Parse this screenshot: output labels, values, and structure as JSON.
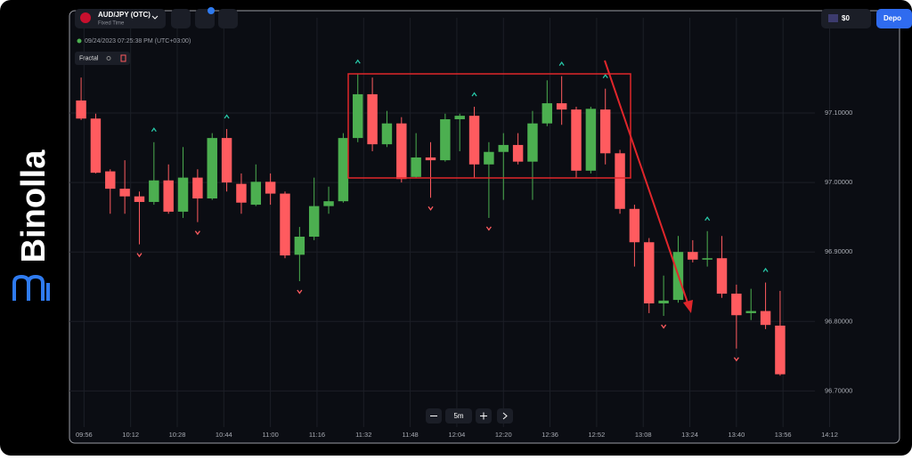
{
  "brand": "Binolla",
  "header": {
    "pair": "AUD/JPY (OTC)",
    "mode": "Fixed Time",
    "balance": "$0",
    "deposit": "Depo"
  },
  "timestamp": "09/24/2023 07:25:38 PM (UTC+03:00)",
  "indicator": "Fractal",
  "timeframe": "5m",
  "chart_data": {
    "type": "candlestick",
    "x": [
      595,
      600,
      605,
      610,
      615,
      620,
      625,
      630,
      635,
      640,
      645,
      650,
      655,
      660,
      665,
      670,
      675,
      680,
      685,
      690,
      695,
      700,
      705,
      710,
      715,
      720,
      725,
      730,
      735,
      740,
      745,
      750,
      755,
      760,
      765,
      770,
      775,
      780,
      785,
      790,
      795,
      800,
      805,
      810,
      815,
      820,
      825,
      830,
      835
    ],
    "open": [
      97.118,
      97.092,
      97.016,
      96.991,
      96.98,
      96.972,
      97.003,
      96.958,
      97.007,
      96.977,
      97.064,
      96.998,
      96.968,
      97.001,
      96.984,
      96.896,
      96.922,
      96.966,
      96.973,
      97.064,
      97.127,
      97.055,
      97.085,
      97.008,
      97.036,
      97.032,
      97.091,
      97.096,
      97.026,
      97.044,
      97.054,
      97.03,
      97.085,
      97.114,
      97.105,
      97.017,
      97.105,
      97.042,
      96.962,
      96.914,
      96.826,
      96.831,
      96.9,
      96.889,
      96.891,
      96.84,
      96.812,
      96.815,
      96.794
    ],
    "high": [
      97.151,
      97.099,
      97.019,
      97.032,
      96.987,
      97.058,
      97.026,
      97.051,
      97.019,
      97.071,
      97.077,
      97.013,
      97.026,
      97.013,
      96.987,
      96.936,
      97.007,
      96.994,
      97.071,
      97.156,
      97.151,
      97.103,
      97.094,
      97.071,
      97.058,
      97.099,
      97.099,
      97.109,
      97.058,
      97.071,
      97.071,
      97.103,
      97.147,
      97.153,
      97.109,
      97.109,
      97.135,
      97.047,
      96.968,
      96.92,
      96.866,
      96.923,
      96.917,
      96.93,
      96.923,
      96.853,
      96.847,
      96.856,
      96.844
    ],
    "low": [
      97.09,
      97.013,
      96.955,
      96.955,
      96.911,
      96.968,
      96.955,
      96.949,
      96.943,
      96.975,
      96.987,
      96.955,
      96.966,
      96.968,
      96.891,
      96.858,
      96.917,
      96.955,
      96.971,
      97.058,
      97.045,
      97.051,
      97.0,
      97.007,
      96.978,
      97.03,
      97.045,
      97.007,
      96.949,
      96.975,
      97.026,
      96.975,
      97.081,
      97.083,
      97.007,
      97.013,
      97.026,
      96.955,
      96.879,
      96.812,
      96.808,
      96.827,
      96.885,
      96.879,
      96.834,
      96.761,
      96.802,
      96.789,
      96.722
    ],
    "close": [
      97.092,
      97.014,
      96.991,
      96.98,
      96.972,
      97.003,
      96.958,
      97.007,
      96.977,
      97.064,
      97.0,
      96.971,
      97.001,
      96.984,
      96.895,
      96.922,
      96.966,
      96.973,
      97.064,
      97.127,
      97.055,
      97.085,
      97.005,
      97.036,
      97.032,
      97.091,
      97.096,
      97.026,
      97.044,
      97.054,
      97.03,
      97.085,
      97.114,
      97.105,
      97.017,
      97.106,
      97.042,
      96.962,
      96.914,
      96.826,
      96.83,
      96.9,
      96.889,
      96.891,
      96.84,
      96.809,
      96.815,
      96.795,
      96.724
    ],
    "up_color": "#4caf50",
    "down_color": "#ff5b5f",
    "fractal_up": [
      620,
      645,
      690,
      730,
      760,
      775,
      810,
      830
    ],
    "fractal_up_color": "#26c6a6",
    "fractal_down": [
      615,
      635,
      670,
      715,
      735,
      795,
      820
    ],
    "fractal_down_color": "#ff5b5f",
    "xlim": [
      591,
      876
    ],
    "xticks": [
      {
        "value": 596,
        "label": "09:56"
      },
      {
        "value": 612,
        "label": "10:12"
      },
      {
        "value": 628,
        "label": "10:28"
      },
      {
        "value": 644,
        "label": "10:44"
      },
      {
        "value": 660,
        "label": "11:00"
      },
      {
        "value": 676,
        "label": "11:16"
      },
      {
        "value": 692,
        "label": "11:32"
      },
      {
        "value": 708,
        "label": "11:48"
      },
      {
        "value": 724,
        "label": "12:04"
      },
      {
        "value": 740,
        "label": "12:20"
      },
      {
        "value": 756,
        "label": "12:36"
      },
      {
        "value": 772,
        "label": "12:52"
      },
      {
        "value": 788,
        "label": "13:08"
      },
      {
        "value": 804,
        "label": "13:24"
      },
      {
        "value": 820,
        "label": "13:40"
      },
      {
        "value": 836,
        "label": "13:56"
      },
      {
        "value": 852,
        "label": "14:12"
      }
    ],
    "ylim": [
      96.648,
      97.237
    ],
    "yticks": [
      {
        "value": 96.7,
        "label": "96.70000"
      },
      {
        "value": 96.8,
        "label": "96.80000"
      },
      {
        "value": 96.9,
        "label": "96.90000"
      },
      {
        "value": 97.0,
        "label": "97.00000"
      },
      {
        "value": 97.1,
        "label": "97.10000"
      }
    ],
    "grid": true
  }
}
